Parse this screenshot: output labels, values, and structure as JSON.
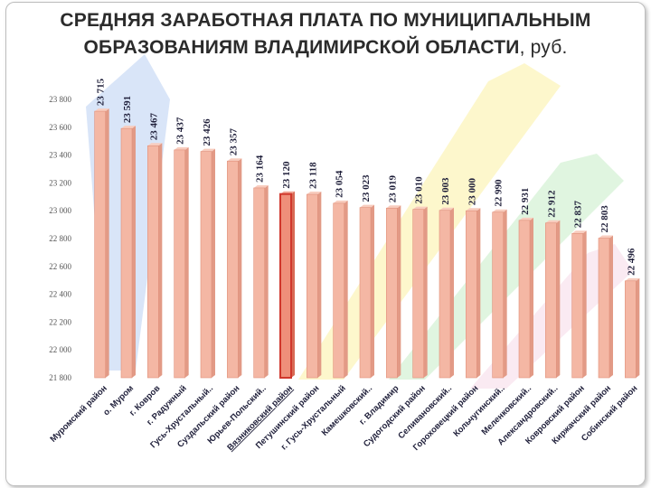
{
  "title": {
    "line1": "СРЕДНЯЯ ЗАРАБОТНАЯ ПЛАТА ПО МУНИЦИПАЛЬНЫМ",
    "line2": "ОБРАЗОВАНИЯМ ВЛАДИМИРСКОЙ ОБЛАСТИ",
    "unit": ", руб."
  },
  "colors": {
    "bar_fill": "#f4b7a4",
    "bar_edge": "#e0907a",
    "highlight_fill": "#ef8f7a",
    "highlight_edge": "#d0372c",
    "label_text": "#1f1f3a",
    "highlight_label": "#c0392b"
  },
  "chart_data": {
    "type": "bar",
    "title": "СРЕДНЯЯ ЗАРАБОТНАЯ ПЛАТА ПО МУНИЦИПАЛЬНЫМ ОБРАЗОВАНИЯМ ВЛАДИМИРСКОЙ ОБЛАСТИ, руб.",
    "categories": [
      "Муромский район",
      "о. Муром",
      "г. Ковров",
      "г. Радужный",
      "Гусь-Хрустальный..",
      "Суздальский район",
      "Юрьев-Польский..",
      "Вязниковский район",
      "Петушинский район",
      "г. Гусь-Хрустальный",
      "Камешковский..",
      "г. Владимир",
      "Судогодский район",
      "Селивановский..",
      "Гороховецкий район",
      "Кольчугинский..",
      "Меленковский..",
      "Александровский..",
      "Ковровский район",
      "Киржачский район",
      "Собинский район"
    ],
    "values": [
      23715,
      23591,
      23467,
      23437,
      23426,
      23357,
      23164,
      23120,
      23118,
      23054,
      23023,
      23019,
      23010,
      23003,
      23000,
      22990,
      22931,
      22912,
      22837,
      22803,
      22496
    ],
    "value_labels": [
      "23 715",
      "23 591",
      "23 467",
      "23 437",
      "23 426",
      "23 357",
      "23 164",
      "23 120",
      "23 118",
      "23 054",
      "23 023",
      "23 019",
      "23 010",
      "23 003",
      "23 000",
      "22 990",
      "22 931",
      "22 912",
      "22 837",
      "22 803",
      "22 496"
    ],
    "highlight_index": 7,
    "yticks": [
      "21 800",
      "22 000",
      "22 200",
      "22 400",
      "22 600",
      "22 800",
      "23 000",
      "23 200",
      "23 400",
      "23 600",
      "23 800"
    ],
    "ylim": [
      21800,
      23800
    ],
    "grid": false,
    "legend": "none"
  }
}
